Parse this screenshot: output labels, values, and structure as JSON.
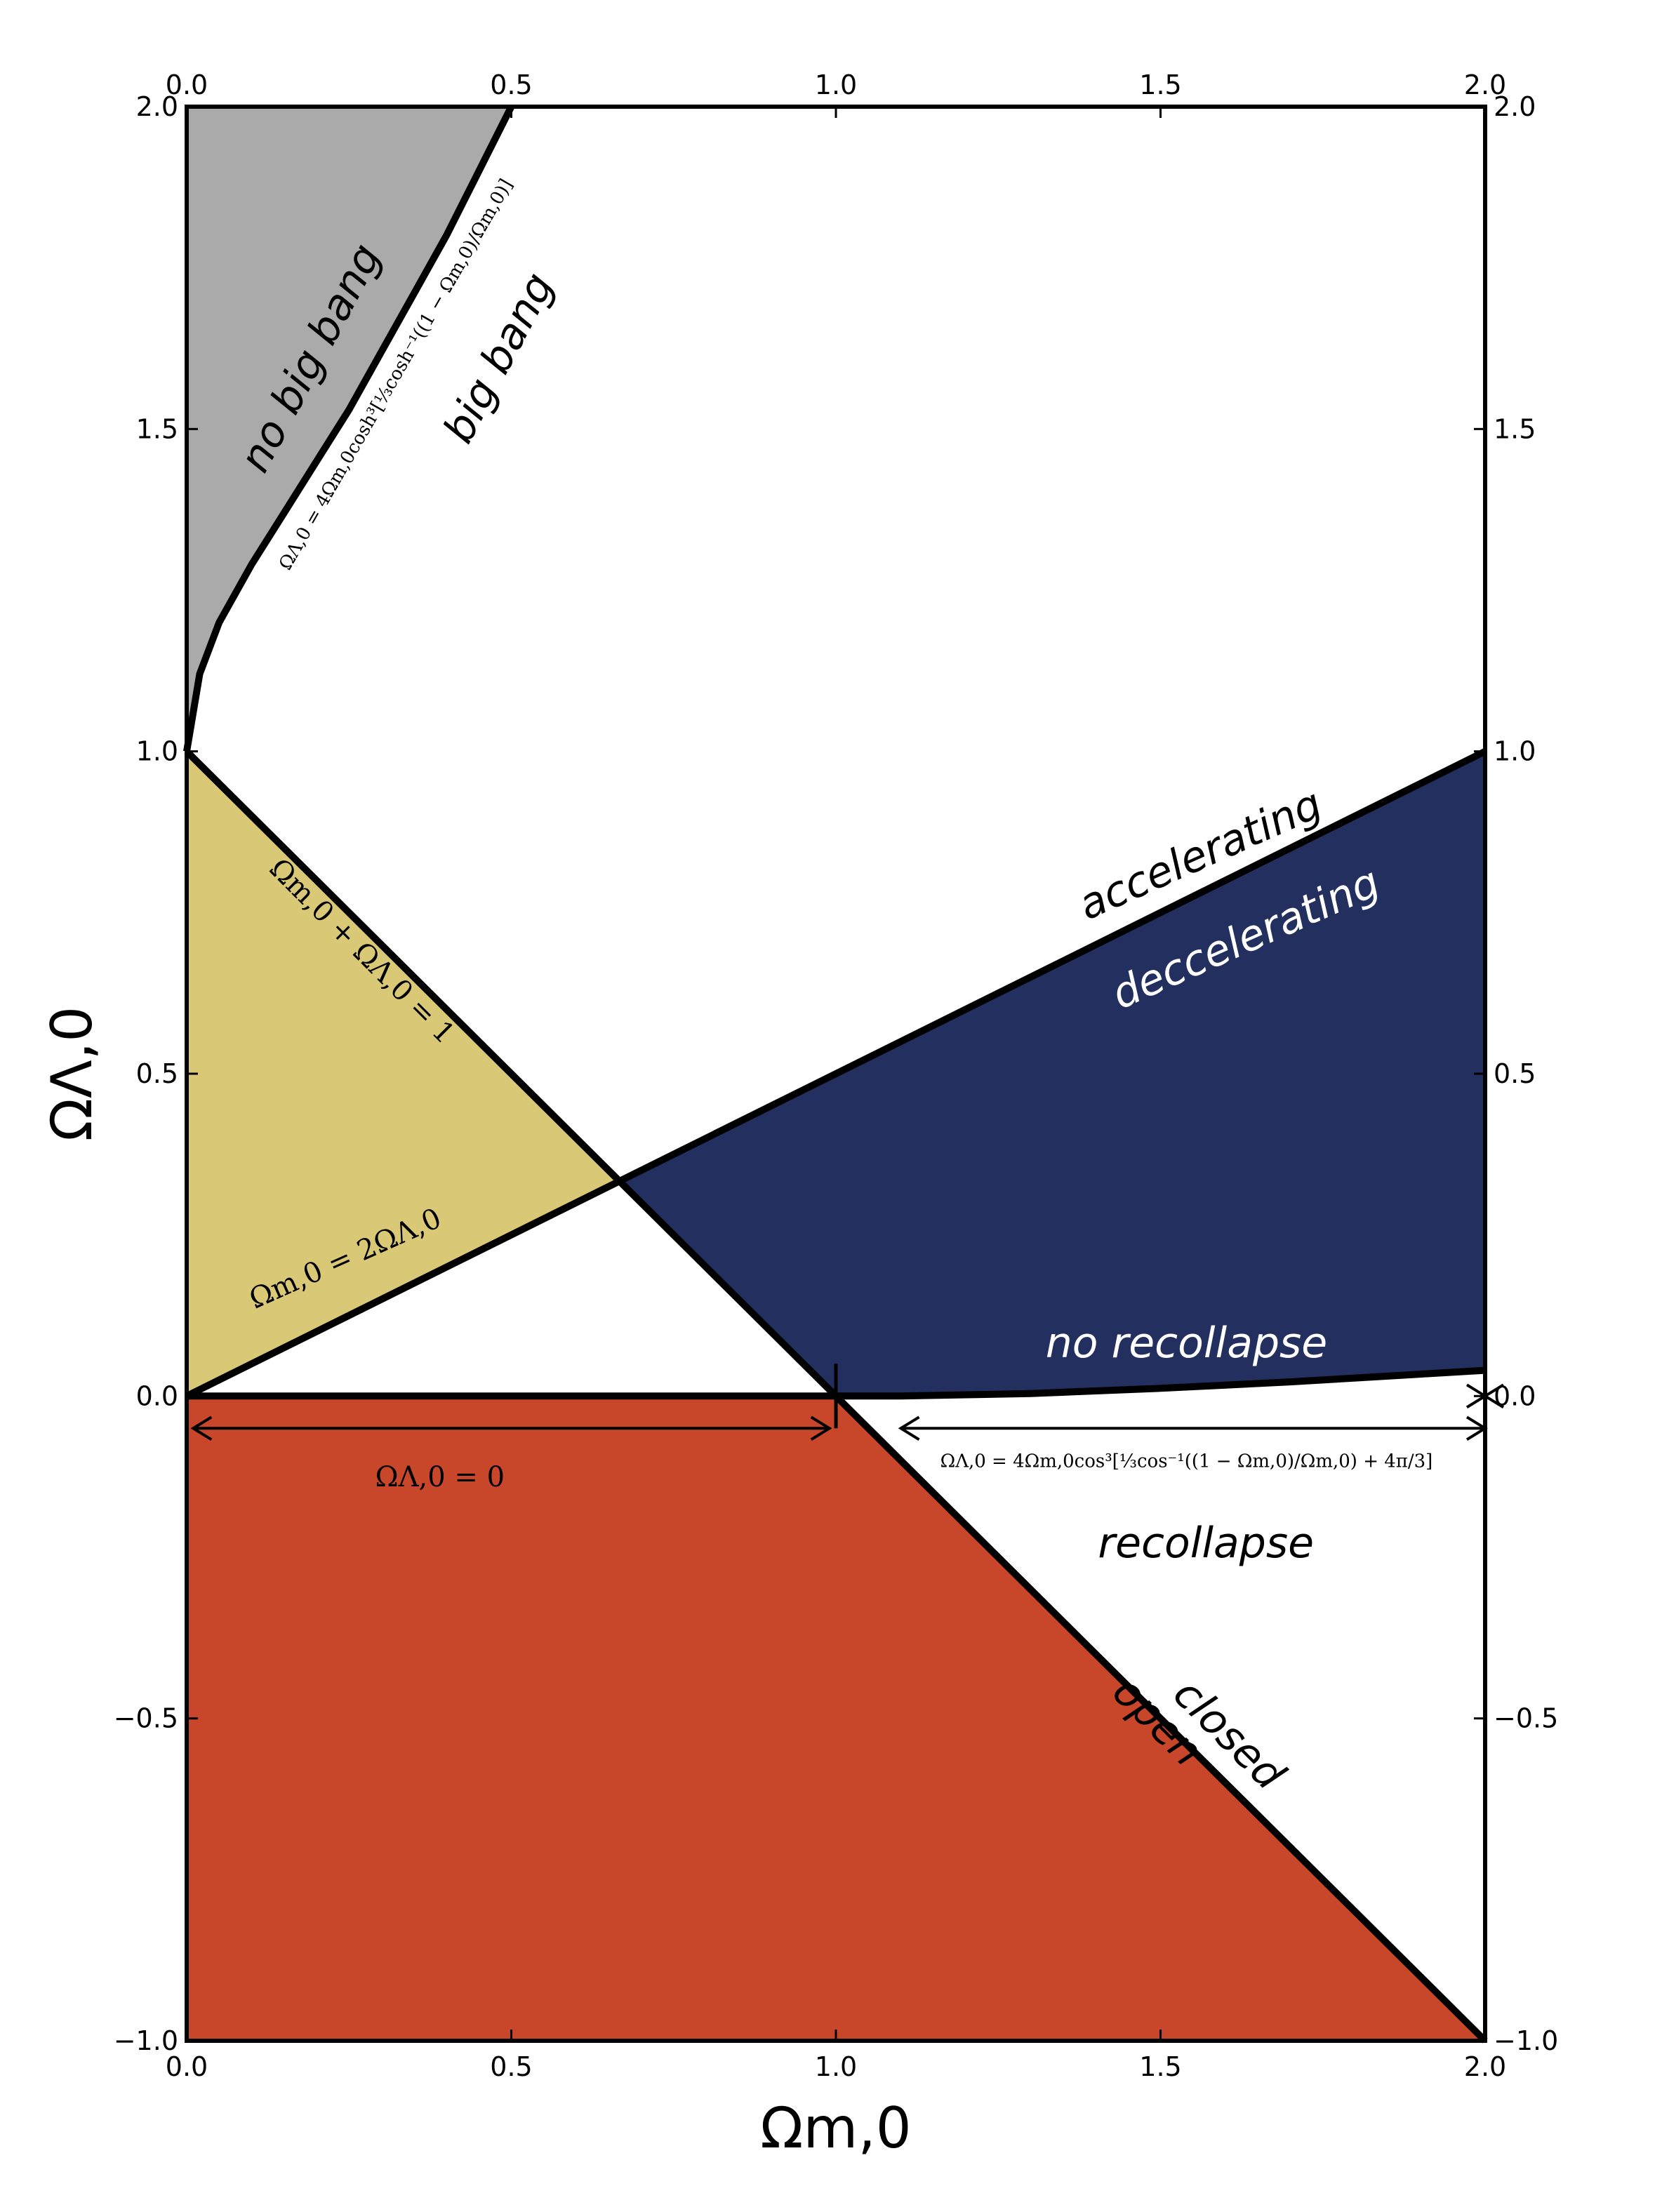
{
  "chart_data": {
    "type": "area",
    "xlabel": "Ωm,0",
    "ylabel": "ΩΛ,0",
    "xlim": [
      0,
      2
    ],
    "ylim": [
      -1,
      2
    ],
    "x_ticks": [
      "0.0",
      "0.5",
      "1.0",
      "1.5",
      "2.0"
    ],
    "y_ticks": [
      "−1.0",
      "−0.5",
      "0.0",
      "0.5",
      "1.0",
      "1.5",
      "2.0"
    ],
    "x_tick_values": [
      0,
      0.5,
      1,
      1.5,
      2
    ],
    "y_tick_values": [
      -1,
      -0.5,
      0,
      0.5,
      1,
      1.5,
      2
    ],
    "grid": false,
    "colors": {
      "no_big_bang": "#aaaaaa",
      "closed_accelerating": "#d9c876",
      "closed_decelerating_no_recollapse": "#232f5f",
      "open": "#c8472b",
      "lines": "#000000"
    },
    "curves": [
      {
        "name": "flat",
        "equation": "Ωm,0 + ΩΛ,0 = 1",
        "points": [
          [
            0,
            1
          ],
          [
            2,
            -1
          ]
        ]
      },
      {
        "name": "accel",
        "equation": "Ωm,0 = 2ΩΛ,0",
        "points": [
          [
            0,
            0
          ],
          [
            2,
            1
          ]
        ]
      },
      {
        "name": "bigbang",
        "equation": "ΩΛ,0 = 4Ωm,0 cosh³[⅓ cosh⁻¹((1−Ωm,0)/Ωm,0)]",
        "points": [
          [
            0,
            1
          ],
          [
            0.02,
            1.12
          ],
          [
            0.05,
            1.2
          ],
          [
            0.1,
            1.29
          ],
          [
            0.15,
            1.37
          ],
          [
            0.2,
            1.45
          ],
          [
            0.25,
            1.53
          ],
          [
            0.3,
            1.62
          ],
          [
            0.35,
            1.71
          ],
          [
            0.4,
            1.8
          ],
          [
            0.45,
            1.9
          ],
          [
            0.5,
            2.0
          ]
        ]
      },
      {
        "name": "recollapse",
        "equation": "ΩΛ,0 = 4Ωm,0 cos³[⅓ cos⁻¹((1−Ωm,0)/Ωm,0) + 4π/3]",
        "points": [
          [
            1,
            0
          ],
          [
            1.1,
            0.0
          ],
          [
            1.2,
            0.002
          ],
          [
            1.3,
            0.004
          ],
          [
            1.4,
            0.008
          ],
          [
            1.5,
            0.012
          ],
          [
            1.6,
            0.017
          ],
          [
            1.7,
            0.022
          ],
          [
            1.8,
            0.028
          ],
          [
            1.9,
            0.034
          ],
          [
            2.0,
            0.04
          ]
        ]
      },
      {
        "name": "zero",
        "equation": "ΩΛ,0 = 0",
        "points": [
          [
            0,
            0
          ],
          [
            1,
            0
          ]
        ]
      }
    ],
    "annotations": {
      "no_big_bang": "no big bang",
      "big_bang": "big bang",
      "accelerating": "accelerating",
      "decelerating": "deccelerating",
      "no_recollapse": "no recollapse",
      "recollapse": "recollapse",
      "closed": "closed",
      "open": "open"
    },
    "formulas": {
      "flat": "Ωm,0 + ΩΛ,0 = 1",
      "accel": "Ωm,0 = 2ΩΛ,0",
      "lambda_zero": "ΩΛ,0 = 0",
      "bigbang": "ΩΛ,0 = 4Ωm,0cosh³[⅓cosh⁻¹((1 − Ωm,0)/Ωm,0)]",
      "recollapse": "ΩΛ,0 = 4Ωm,0cos³[⅓cos⁻¹((1 − Ωm,0)/Ωm,0) + 4π/3]"
    }
  }
}
